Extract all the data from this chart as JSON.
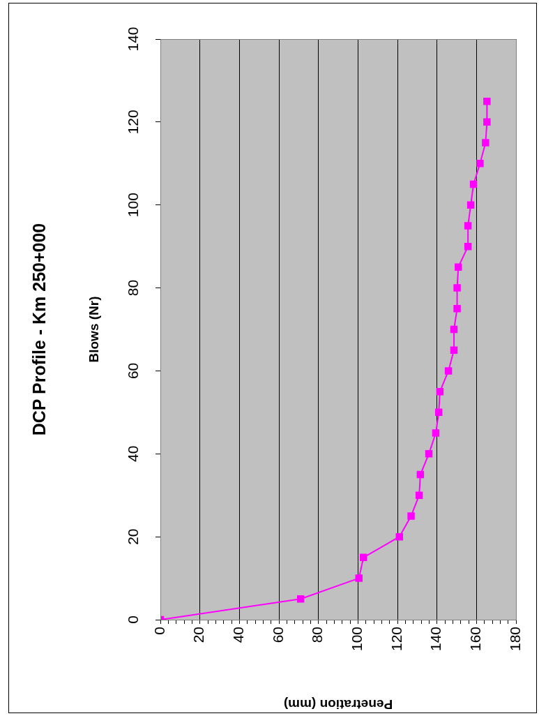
{
  "chart_data": {
    "type": "line",
    "title": "DCP Profile - Km 250+000",
    "xlabel": "Penetration (mm)",
    "ylabel": "Blows (Nr)",
    "x": [
      0,
      71,
      100.5,
      102.8,
      121,
      126.9,
      131,
      131.6,
      135.9,
      139.4,
      140.9,
      141.5,
      145.8,
      148.6,
      148.6,
      150.2,
      150.2,
      150.8,
      155.7,
      155.7,
      157.1,
      158.5,
      161.8,
      164.6,
      165.3,
      165.3
    ],
    "series": [
      {
        "color": "#ff00ff",
        "values": [
          0,
          5,
          10,
          15,
          20,
          25,
          30,
          35,
          40,
          45,
          50,
          55,
          60,
          65,
          70,
          75,
          80,
          85,
          90,
          95,
          100,
          105,
          110,
          115,
          120,
          125
        ]
      }
    ],
    "xlim": [
      0,
      180
    ],
    "xticks": [
      0,
      {
        "value": 4,
        "label": null
      },
      {
        "value": 8,
        "label": null
      },
      {
        "value": 12,
        "label": null
      },
      {
        "value": 16,
        "label": null
      },
      20,
      {
        "value": 24,
        "label": null
      },
      {
        "value": 28,
        "label": null
      },
      {
        "value": 32,
        "label": null
      },
      {
        "value": 36,
        "label": null
      },
      40,
      {
        "value": 44,
        "label": null
      },
      {
        "value": 48,
        "label": null
      },
      {
        "value": 52,
        "label": null
      },
      {
        "value": 56,
        "label": null
      },
      60,
      {
        "value": 64,
        "label": null
      },
      {
        "value": 68,
        "label": null
      },
      {
        "value": 72,
        "label": null
      },
      {
        "value": 76,
        "label": null
      },
      80,
      {
        "value": 84,
        "label": null
      },
      {
        "value": 88,
        "label": null
      },
      {
        "value": 92,
        "label": null
      },
      {
        "value": 96,
        "label": null
      },
      100,
      {
        "value": 104,
        "label": null
      },
      {
        "value": 108,
        "label": null
      },
      {
        "value": 112,
        "label": null
      },
      {
        "value": 116,
        "label": null
      },
      120,
      {
        "value": 124,
        "label": null
      },
      {
        "value": 128,
        "label": null
      },
      {
        "value": 132,
        "label": null
      },
      {
        "value": 136,
        "label": null
      },
      140,
      {
        "value": 144,
        "label": null
      },
      {
        "value": 148,
        "label": null
      },
      {
        "value": 152,
        "label": null
      },
      {
        "value": 156,
        "label": null
      },
      160,
      {
        "value": 164,
        "label": null
      },
      {
        "value": 168,
        "label": null
      },
      {
        "value": 172,
        "label": null
      },
      {
        "value": 176,
        "label": null
      },
      180
    ],
    "ylim": [
      0,
      140
    ],
    "yticks": [
      0,
      20,
      40,
      60,
      80,
      100,
      120,
      140
    ],
    "grid": "x",
    "legend": false,
    "marker": "square",
    "line_style": "solid"
  }
}
